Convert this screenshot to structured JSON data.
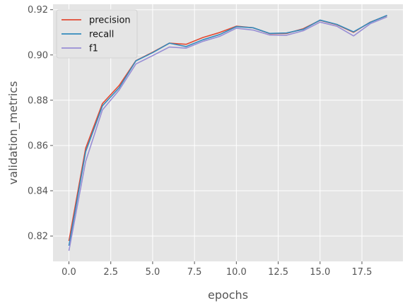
{
  "chart_data": {
    "type": "line",
    "title": "",
    "xlabel": "epochs",
    "ylabel": "validation_metrics",
    "xlim": [
      -0.95,
      19.95
    ],
    "ylim": [
      0.8088,
      0.9224
    ],
    "x_ticks": [
      0.0,
      2.5,
      5.0,
      7.5,
      10.0,
      12.5,
      15.0,
      17.5
    ],
    "x_tick_labels": [
      "0.0",
      "2.5",
      "5.0",
      "7.5",
      "10.0",
      "12.5",
      "15.0",
      "17.5"
    ],
    "y_ticks": [
      0.82,
      0.84,
      0.86,
      0.88,
      0.9,
      0.92
    ],
    "y_tick_labels": [
      "0.82",
      "0.84",
      "0.86",
      "0.88",
      "0.90",
      "0.92"
    ],
    "grid": true,
    "legend_position": "top-left",
    "x": [
      0,
      1,
      2,
      3,
      4,
      5,
      6,
      7,
      8,
      9,
      10,
      11,
      12,
      13,
      14,
      15,
      16,
      17,
      18,
      19
    ],
    "series": [
      {
        "name": "precision",
        "color": "#E24A33",
        "values": [
          0.8178,
          0.8588,
          0.8785,
          0.8865,
          0.8975,
          0.9012,
          0.9052,
          0.9047,
          0.9077,
          0.9099,
          0.9127,
          0.912,
          0.9094,
          0.9095,
          0.9116,
          0.9153,
          0.9134,
          0.91,
          0.9145,
          0.9174
        ]
      },
      {
        "name": "recall",
        "color": "#348ABD",
        "values": [
          0.8157,
          0.8573,
          0.8775,
          0.8855,
          0.8974,
          0.901,
          0.9052,
          0.9037,
          0.9067,
          0.909,
          0.9125,
          0.912,
          0.9095,
          0.9097,
          0.9113,
          0.9154,
          0.9135,
          0.9102,
          0.9144,
          0.9175
        ]
      },
      {
        "name": "f1",
        "color": "#988ED5",
        "values": [
          0.8135,
          0.853,
          0.8757,
          0.8845,
          0.896,
          0.8997,
          0.9035,
          0.903,
          0.906,
          0.9082,
          0.9118,
          0.911,
          0.9088,
          0.9087,
          0.9107,
          0.9145,
          0.9127,
          0.9084,
          0.9138,
          0.9168
        ]
      }
    ]
  }
}
